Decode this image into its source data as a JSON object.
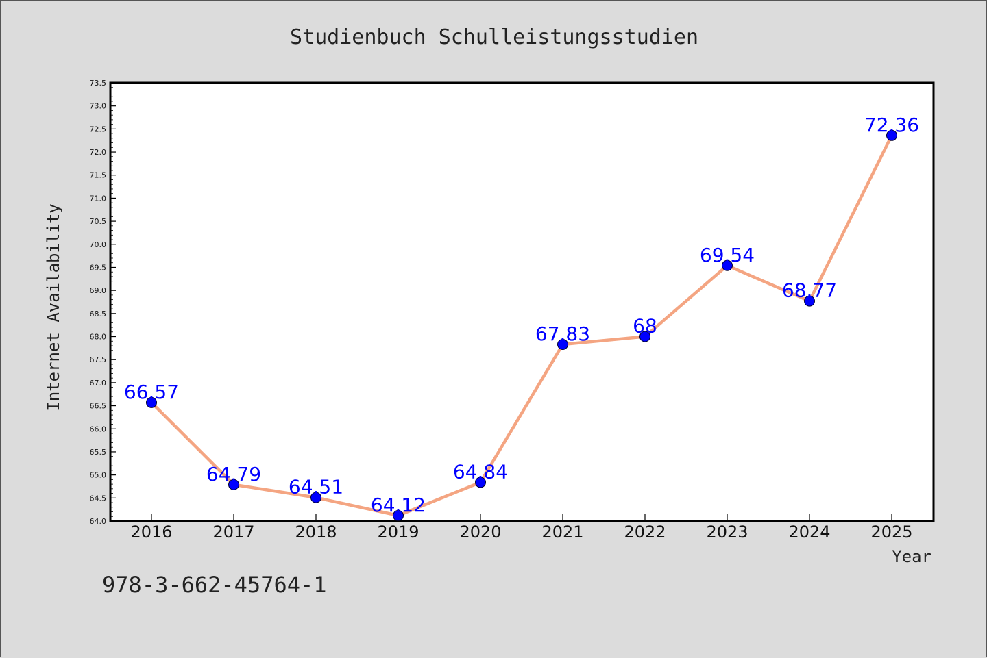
{
  "colors": {
    "background": "#dcdcdc",
    "plot_background": "#ffffff",
    "line": "#f4a582",
    "marker": "#0000ff",
    "data_label": "#0000ff",
    "axis": "#000000"
  },
  "footnote": "978-3-662-45764-1",
  "chart_data": {
    "type": "line",
    "title": "Studienbuch Schulleistungsstudien",
    "xlabel": "Year",
    "ylabel": "Internet Availability",
    "categories": [
      "2016",
      "2017",
      "2018",
      "2019",
      "2020",
      "2021",
      "2022",
      "2023",
      "2024",
      "2025"
    ],
    "series": [
      {
        "values": [
          66.57,
          64.79,
          64.51,
          64.12,
          64.84,
          67.83,
          68,
          69.54,
          68.77,
          72.36
        ],
        "labels": [
          "66.57",
          "64.79",
          "64.51",
          "64.12",
          "64.84",
          "67.83",
          "68",
          "69.54",
          "68.77",
          "72.36"
        ]
      }
    ],
    "ylim": [
      64.0,
      73.5
    ],
    "yticks": [
      "64.0",
      "64.5",
      "65.0",
      "65.5",
      "66.0",
      "66.5",
      "67.0",
      "67.5",
      "68.0",
      "68.5",
      "69.0",
      "69.5",
      "70.0",
      "70.5",
      "71.0",
      "71.5",
      "72.0",
      "72.5",
      "73.0",
      "73.5"
    ],
    "grid": false,
    "legend": "none",
    "markers": "circle"
  }
}
